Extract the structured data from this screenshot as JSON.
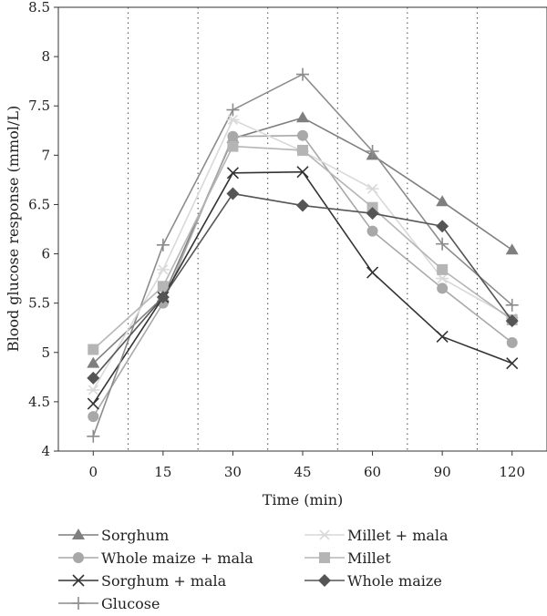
{
  "chart_data": {
    "type": "line",
    "xlabel": "Time (min)",
    "ylabel": "Blood glucose response (mmol/L)",
    "categories": [
      "0",
      "15",
      "30",
      "45",
      "60",
      "90",
      "120"
    ],
    "ylim": [
      4,
      8.5
    ],
    "yticks": [
      "4",
      "4.5",
      "5",
      "5.5",
      "6",
      "6.5",
      "7",
      "7.5",
      "8",
      "8.5"
    ],
    "grid": "vertical dotted lines between categories",
    "legend_position": "bottom",
    "series": [
      {
        "name": "Sorghum",
        "marker": "triangle",
        "color": "#7f7f7f",
        "values": [
          4.89,
          5.56,
          7.17,
          7.38,
          7.0,
          6.53,
          6.04
        ]
      },
      {
        "name": "Whole maize  + mala",
        "marker": "circle",
        "color": "#a8a8a8",
        "values": [
          4.35,
          5.5,
          7.19,
          7.2,
          6.23,
          5.65,
          5.1
        ]
      },
      {
        "name": "Sorghum + mala",
        "marker": "x",
        "color": "#333333",
        "values": [
          4.48,
          5.56,
          6.82,
          6.83,
          5.81,
          5.16,
          4.89
        ]
      },
      {
        "name": "Glucose",
        "marker": "plus",
        "color": "#8c8c8c",
        "values": [
          4.15,
          6.09,
          7.46,
          7.82,
          7.04,
          6.1,
          5.48
        ]
      },
      {
        "name": "Millet + mala",
        "marker": "asterisk",
        "color": "#d9d9d9",
        "values": [
          4.62,
          5.84,
          7.36,
          7.04,
          6.66,
          5.75,
          5.35
        ]
      },
      {
        "name": "Millet",
        "marker": "square",
        "color": "#b5b5b5",
        "values": [
          5.03,
          5.67,
          7.09,
          7.05,
          6.47,
          5.84,
          5.33
        ]
      },
      {
        "name": "Whole maize",
        "marker": "diamond",
        "color": "#555555",
        "values": [
          4.74,
          5.56,
          6.61,
          6.49,
          6.41,
          6.28,
          5.32
        ]
      }
    ]
  }
}
